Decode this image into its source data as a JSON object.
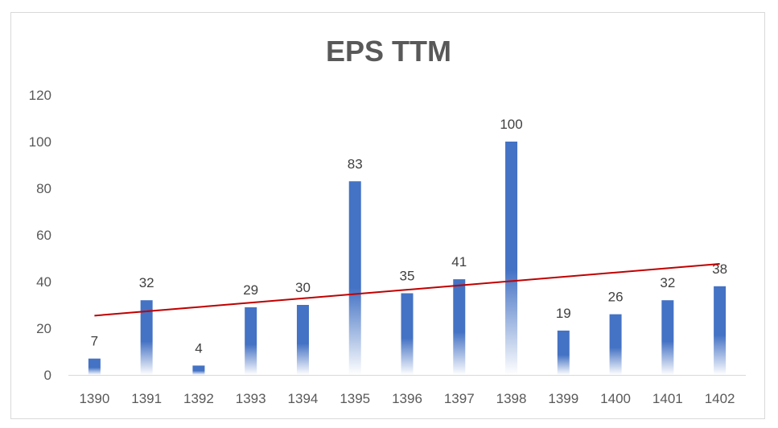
{
  "chart_data": {
    "type": "bar",
    "title": "EPS TTM",
    "xlabel": "",
    "ylabel": "",
    "categories": [
      "1390",
      "1391",
      "1392",
      "1393",
      "1394",
      "1395",
      "1396",
      "1397",
      "1398",
      "1399",
      "1400",
      "1401",
      "1402"
    ],
    "series": [
      {
        "name": "EPS TTM",
        "values": [
          7,
          32,
          4,
          29,
          30,
          83,
          35,
          41,
          100,
          19,
          26,
          32,
          38
        ]
      }
    ],
    "ylim": [
      0,
      120
    ],
    "yticks": [
      "0",
      "20",
      "40",
      "60",
      "80",
      "100",
      "120"
    ],
    "trendline": {
      "type": "linear",
      "start_value": 25.4,
      "end_value": 47.6
    },
    "grid": false,
    "legend": "none",
    "colors": {
      "bar": "#4472c4",
      "bar_fade": "#ffffff",
      "trendline": "#c00000",
      "axis": "#d9d9d9"
    }
  }
}
